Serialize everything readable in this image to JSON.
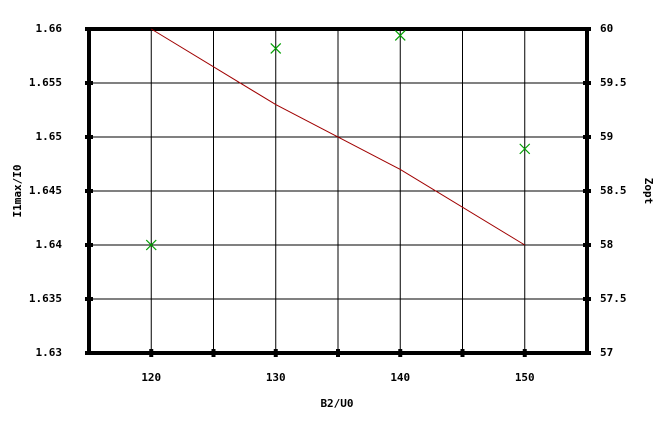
{
  "chart_data": {
    "type": "line",
    "xlabel": "B2/U0",
    "ylabel": "I1max/I0",
    "y2label": "Zopt",
    "x": [
      120,
      130,
      140,
      150
    ],
    "xlim": [
      115,
      155
    ],
    "xticks": [
      120,
      130,
      140,
      150
    ],
    "xminorticks": [
      125,
      135,
      145
    ],
    "ylim": [
      1.63,
      1.66
    ],
    "yticks": [
      1.63,
      1.635,
      1.64,
      1.645,
      1.65,
      1.655,
      1.66
    ],
    "y2lim": [
      57,
      60
    ],
    "y2ticks": [
      57,
      57.5,
      58,
      58.5,
      59,
      59.5,
      60
    ],
    "grid": true,
    "series": [
      {
        "type": "line",
        "color": "#a00000",
        "values": [
          1.66,
          1.653,
          1.647,
          1.64
        ]
      },
      {
        "type": "scatter",
        "marker": "x",
        "axis": "y2",
        "color": "#00a000",
        "values": [
          58,
          59.82,
          59.94,
          58.89
        ]
      }
    ]
  }
}
